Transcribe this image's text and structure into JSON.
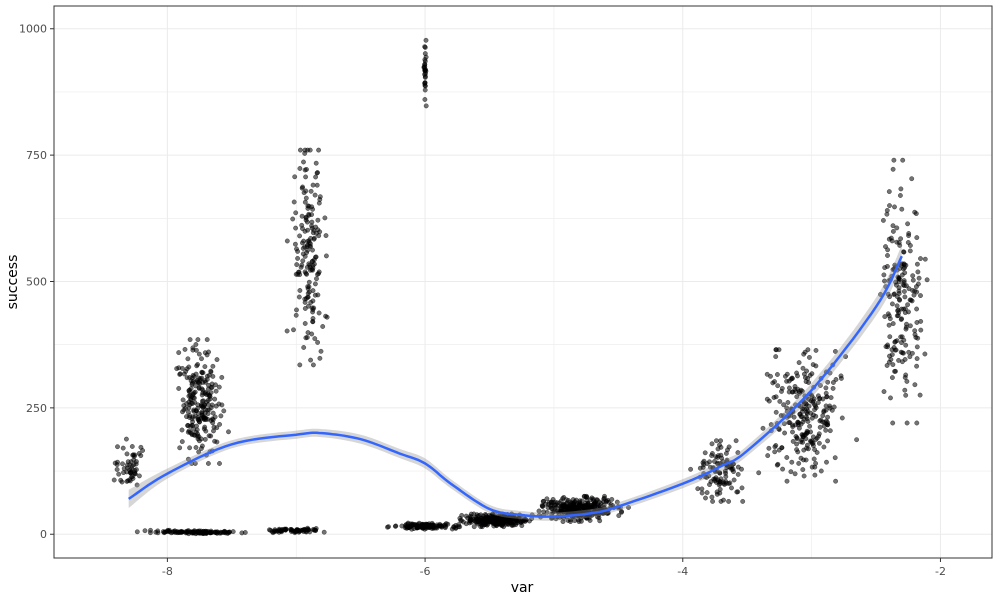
{
  "chart_data": {
    "type": "scatter",
    "title": "",
    "xlabel": "var",
    "ylabel": "success",
    "xlim": [
      -8.88,
      -1.6
    ],
    "ylim": [
      -47,
      1045
    ],
    "x_ticks": [
      -8,
      -6,
      -4,
      -2
    ],
    "y_ticks": [
      0,
      250,
      500,
      750,
      1000
    ],
    "x_tick_labels": [
      "-8",
      "-6",
      "-4",
      "-2"
    ],
    "y_tick_labels": [
      "0",
      "250",
      "500",
      "750",
      "1000"
    ],
    "grid": true,
    "legend": "none",
    "colors": {
      "points": "#000000",
      "smooth_line": "#3366ff",
      "ribbon": "#999999",
      "panel_border": "#333333",
      "grid": "#ebebeb"
    },
    "clusters": [
      {
        "x": -8.3,
        "x_spread": 0.12,
        "y_min": 80,
        "y_max": 190,
        "n": 55
      },
      {
        "x": -7.75,
        "x_spread": 0.15,
        "y_min": 140,
        "y_max": 385,
        "n": 230
      },
      {
        "x": -7.8,
        "x_spread": 0.3,
        "y_min": 1,
        "y_max": 8,
        "n": 120
      },
      {
        "x": -6.9,
        "x_spread": 0.12,
        "y_min": 335,
        "y_max": 760,
        "n": 170
      },
      {
        "x": -7.0,
        "x_spread": 0.2,
        "y_min": 3,
        "y_max": 12,
        "n": 70
      },
      {
        "x": -6.0,
        "x_spread": 0.01,
        "y_min": 820,
        "y_max": 990,
        "n": 30
      },
      {
        "x": -6.0,
        "x_spread": 0.2,
        "y_min": 10,
        "y_max": 22,
        "n": 120
      },
      {
        "x": -5.45,
        "x_spread": 0.22,
        "y_min": 15,
        "y_max": 40,
        "n": 260
      },
      {
        "x": -4.8,
        "x_spread": 0.25,
        "y_min": 25,
        "y_max": 75,
        "n": 320
      },
      {
        "x": -3.7,
        "x_spread": 0.15,
        "y_min": 65,
        "y_max": 185,
        "n": 110
      },
      {
        "x": -3.05,
        "x_spread": 0.25,
        "y_min": 105,
        "y_max": 365,
        "n": 260
      },
      {
        "x": -2.3,
        "x_spread": 0.15,
        "y_min": 220,
        "y_max": 740,
        "n": 190
      }
    ],
    "smooth_fit": {
      "x": [
        -8.3,
        -8.0,
        -7.5,
        -7.0,
        -6.8,
        -6.5,
        -6.2,
        -6.0,
        -5.8,
        -5.5,
        -5.25,
        -5.0,
        -4.7,
        -4.5,
        -4.0,
        -3.7,
        -3.5,
        -3.0,
        -2.5,
        -2.3
      ],
      "y": [
        70,
        120,
        178,
        197,
        200,
        188,
        160,
        140,
        100,
        50,
        38,
        35,
        42,
        55,
        100,
        135,
        165,
        285,
        450,
        550
      ],
      "ribbon_halfwidth": [
        18,
        10,
        8,
        8,
        8,
        9,
        9,
        10,
        9,
        8,
        8,
        8,
        8,
        8,
        9,
        10,
        10,
        14,
        18,
        22
      ]
    }
  }
}
